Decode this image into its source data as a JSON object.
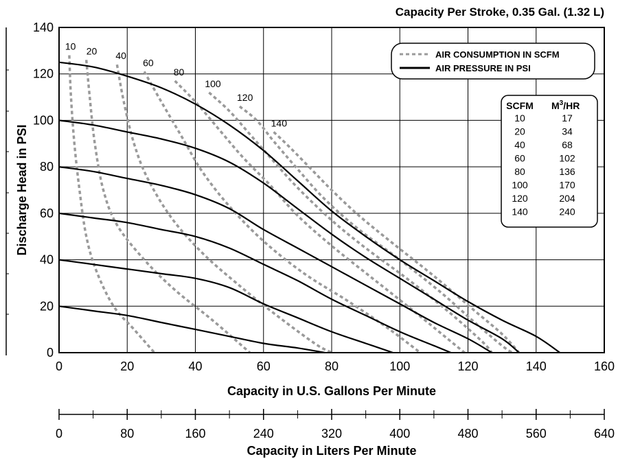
{
  "header": {
    "subtitle": "Capacity Per Stroke, 0.35 Gal. (1.32 L)"
  },
  "colors": {
    "pressure": "#000000",
    "air": "#9a9a9a",
    "grid": "#000000",
    "background": "#ffffff"
  },
  "legend": {
    "placement": "top-right",
    "items": [
      {
        "label": "AIR CONSUMPTION IN SCFM",
        "style": "dashed"
      },
      {
        "label": "AIR PRESSURE IN PSI",
        "style": "solid"
      }
    ]
  },
  "conversion_table": {
    "headers": [
      "SCFM",
      "M",
      "3",
      "/HR"
    ],
    "rows": [
      [
        "10",
        "17"
      ],
      [
        "20",
        "34"
      ],
      [
        "40",
        "68"
      ],
      [
        "60",
        "102"
      ],
      [
        "80",
        "136"
      ],
      [
        "100",
        "170"
      ],
      [
        "120",
        "204"
      ],
      [
        "140",
        "240"
      ]
    ]
  },
  "chart_data": {
    "type": "line",
    "title": "Capacity Per Stroke, 0.35 Gal. (1.32 L)",
    "xlabel": "Capacity in U.S. Gallons Per Minute",
    "ylabel": "Discharge Head in PSI",
    "xlim": [
      0,
      160
    ],
    "ylim": [
      0,
      140
    ],
    "x_ticks": [
      "0",
      "20",
      "40",
      "60",
      "80",
      "100",
      "120",
      "140",
      "160"
    ],
    "y_ticks": [
      "0",
      "20",
      "40",
      "60",
      "80",
      "100",
      "120",
      "140"
    ],
    "grid": true,
    "secondary_x": {
      "xlabel": "Capacity in Liters Per Minute",
      "ticks": [
        "0",
        "80",
        "160",
        "240",
        "320",
        "400",
        "480",
        "560",
        "640"
      ]
    },
    "pressure_series": [
      {
        "points": [
          [
            0,
            125
          ],
          [
            10,
            123
          ],
          [
            20,
            119
          ],
          [
            30,
            114
          ],
          [
            40,
            107
          ],
          [
            50,
            98
          ],
          [
            60,
            87
          ],
          [
            70,
            74
          ],
          [
            80,
            61
          ],
          [
            90,
            50
          ],
          [
            100,
            40
          ],
          [
            110,
            31
          ],
          [
            120,
            22
          ],
          [
            130,
            14
          ],
          [
            140,
            7
          ],
          [
            147,
            0
          ]
        ]
      },
      {
        "points": [
          [
            0,
            100
          ],
          [
            10,
            98
          ],
          [
            20,
            95
          ],
          [
            30,
            92
          ],
          [
            40,
            88
          ],
          [
            50,
            82
          ],
          [
            60,
            73
          ],
          [
            70,
            62
          ],
          [
            80,
            51
          ],
          [
            90,
            41
          ],
          [
            100,
            32
          ],
          [
            110,
            23
          ],
          [
            120,
            14
          ],
          [
            130,
            6
          ],
          [
            135,
            0
          ]
        ]
      },
      {
        "points": [
          [
            0,
            80
          ],
          [
            10,
            78
          ],
          [
            20,
            75
          ],
          [
            30,
            72
          ],
          [
            40,
            68
          ],
          [
            50,
            62
          ],
          [
            60,
            53
          ],
          [
            70,
            45
          ],
          [
            80,
            37
          ],
          [
            90,
            29
          ],
          [
            100,
            21
          ],
          [
            110,
            13
          ],
          [
            120,
            6
          ],
          [
            127,
            0
          ]
        ]
      },
      {
        "points": [
          [
            0,
            60
          ],
          [
            10,
            58
          ],
          [
            20,
            56
          ],
          [
            30,
            53
          ],
          [
            40,
            50
          ],
          [
            50,
            45
          ],
          [
            60,
            38
          ],
          [
            70,
            31
          ],
          [
            80,
            23
          ],
          [
            90,
            16
          ],
          [
            100,
            9
          ],
          [
            110,
            3
          ],
          [
            115,
            0
          ]
        ]
      },
      {
        "points": [
          [
            0,
            40
          ],
          [
            10,
            38
          ],
          [
            20,
            36
          ],
          [
            30,
            34
          ],
          [
            40,
            32
          ],
          [
            50,
            28
          ],
          [
            60,
            21
          ],
          [
            70,
            15
          ],
          [
            80,
            9
          ],
          [
            90,
            4
          ],
          [
            98,
            0
          ]
        ]
      },
      {
        "points": [
          [
            0,
            20
          ],
          [
            10,
            18
          ],
          [
            20,
            16
          ],
          [
            30,
            13
          ],
          [
            40,
            10
          ],
          [
            50,
            7
          ],
          [
            60,
            4
          ],
          [
            70,
            2
          ],
          [
            78,
            0
          ]
        ]
      }
    ],
    "air_series": [
      {
        "name": "10",
        "points": [
          [
            3,
            128
          ],
          [
            3.5,
            110
          ],
          [
            4.5,
            90
          ],
          [
            6,
            70
          ],
          [
            8,
            50
          ],
          [
            11,
            35
          ],
          [
            16,
            20
          ],
          [
            22,
            10
          ],
          [
            28,
            0
          ]
        ]
      },
      {
        "name": "20",
        "points": [
          [
            8,
            126
          ],
          [
            9,
            110
          ],
          [
            10.5,
            90
          ],
          [
            13,
            70
          ],
          [
            17,
            55
          ],
          [
            25,
            40
          ],
          [
            34,
            27
          ],
          [
            45,
            14
          ],
          [
            56,
            0
          ]
        ]
      },
      {
        "name": "40",
        "points": [
          [
            17,
            124
          ],
          [
            19,
            108
          ],
          [
            22,
            90
          ],
          [
            26,
            75
          ],
          [
            33,
            58
          ],
          [
            42,
            43
          ],
          [
            52,
            30
          ],
          [
            63,
            17
          ],
          [
            75,
            4
          ],
          [
            80,
            0
          ]
        ]
      },
      {
        "name": "60",
        "points": [
          [
            25,
            121
          ],
          [
            30,
            108
          ],
          [
            36,
            93
          ],
          [
            42,
            78
          ],
          [
            50,
            63
          ],
          [
            60,
            48
          ],
          [
            72,
            34
          ],
          [
            85,
            22
          ],
          [
            97,
            10
          ],
          [
            106,
            0
          ]
        ]
      },
      {
        "name": "80",
        "points": [
          [
            34,
            117
          ],
          [
            40,
            108
          ],
          [
            47,
            96
          ],
          [
            54,
            84
          ],
          [
            62,
            72
          ],
          [
            70,
            59
          ],
          [
            80,
            46
          ],
          [
            92,
            32
          ],
          [
            104,
            18
          ],
          [
            114,
            6
          ],
          [
            119,
            0
          ]
        ]
      },
      {
        "name": "100",
        "points": [
          [
            44,
            112
          ],
          [
            50,
            104
          ],
          [
            56,
            94
          ],
          [
            62,
            84
          ],
          [
            70,
            71
          ],
          [
            80,
            57
          ],
          [
            90,
            45
          ],
          [
            102,
            32
          ],
          [
            114,
            18
          ],
          [
            124,
            5
          ],
          [
            127,
            0
          ]
        ]
      },
      {
        "name": "120",
        "points": [
          [
            53,
            106
          ],
          [
            58,
            100
          ],
          [
            63,
            91
          ],
          [
            70,
            79
          ],
          [
            78,
            66
          ],
          [
            88,
            53
          ],
          [
            100,
            40
          ],
          [
            112,
            26
          ],
          [
            122,
            13
          ],
          [
            130,
            3
          ],
          [
            133,
            0
          ]
        ]
      },
      {
        "name": "140",
        "points": [
          [
            63,
            95
          ],
          [
            68,
            88
          ],
          [
            74,
            79
          ],
          [
            80,
            70
          ],
          [
            88,
            59
          ],
          [
            98,
            47
          ],
          [
            110,
            33
          ],
          [
            122,
            18
          ],
          [
            130,
            8
          ],
          [
            135,
            0
          ]
        ]
      }
    ]
  }
}
